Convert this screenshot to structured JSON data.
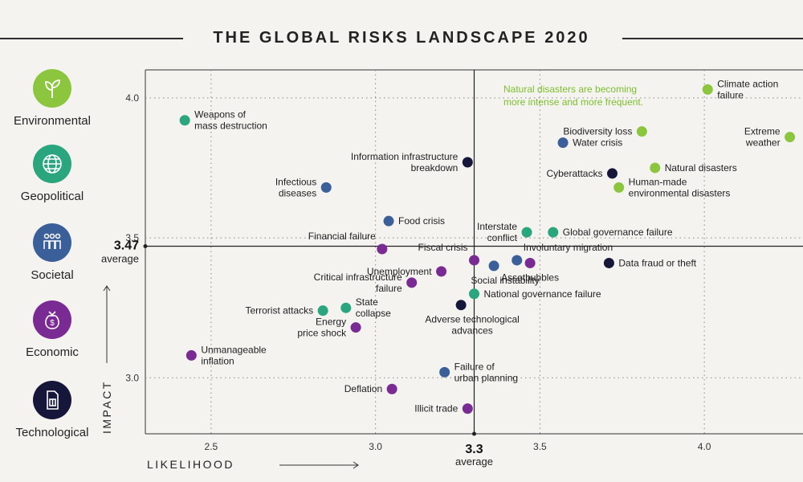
{
  "title": "THE GLOBAL RISKS LANDSCAPE 2020",
  "colors": {
    "Environmental": "#8cc63f",
    "Geopolitical": "#2aa57e",
    "Societal": "#3b5f99",
    "Economic": "#7a2b93",
    "Technological": "#16153a",
    "background": "#f4f3f0"
  },
  "legend": [
    {
      "category": "Environmental",
      "label": "Environmental",
      "icon": "leaf-icon"
    },
    {
      "category": "Geopolitical",
      "label": "Geopolitical",
      "icon": "globe-icon"
    },
    {
      "category": "Societal",
      "label": "Societal",
      "icon": "people-icon"
    },
    {
      "category": "Economic",
      "label": "Economic",
      "icon": "money-bag-icon"
    },
    {
      "category": "Technological",
      "label": "Technological",
      "icon": "sim-card-icon"
    }
  ],
  "annotation": {
    "line1": "Natural disasters are becoming",
    "line2": "more intense and more frequent."
  },
  "chart_data": {
    "type": "scatter",
    "title": "THE GLOBAL RISKS LANDSCAPE 2020",
    "xlabel": "LIKELIHOOD",
    "ylabel": "IMPACT",
    "xlim": [
      2.3,
      4.3
    ],
    "ylim": [
      2.8,
      4.1
    ],
    "xticks": [
      2.5,
      3.0,
      3.5,
      4.0
    ],
    "yticks": [
      3.0,
      3.5,
      4.0
    ],
    "xtick_labels": [
      "2.5",
      "3.0",
      "3.5",
      "4.0"
    ],
    "ytick_labels": [
      "3.0",
      "3.5",
      "4.0"
    ],
    "average_x": 3.3,
    "average_y": 3.47,
    "average_x_label": "3.3",
    "average_y_label": "3.47",
    "average_word": "average",
    "points": [
      {
        "name": "Climate action failure",
        "lines": [
          "Climate action",
          "failure"
        ],
        "category": "Environmental",
        "x": 4.01,
        "y": 4.03,
        "label_pos": "right"
      },
      {
        "name": "Extreme weather",
        "lines": [
          "Extreme",
          "weather"
        ],
        "category": "Environmental",
        "x": 4.26,
        "y": 3.86,
        "label_pos": "left"
      },
      {
        "name": "Biodiversity loss",
        "lines": [
          "Biodiversity loss"
        ],
        "category": "Environmental",
        "x": 3.81,
        "y": 3.88,
        "label_pos": "left"
      },
      {
        "name": "Natural disasters",
        "lines": [
          "Natural disasters"
        ],
        "category": "Environmental",
        "x": 3.85,
        "y": 3.75,
        "label_pos": "right"
      },
      {
        "name": "Human-made environmental disasters",
        "lines": [
          "Human-made",
          "environmental disasters"
        ],
        "category": "Environmental",
        "x": 3.74,
        "y": 3.68,
        "label_pos": "right"
      },
      {
        "name": "Weapons of mass destruction",
        "lines": [
          "Weapons of",
          "mass destruction"
        ],
        "category": "Geopolitical",
        "x": 2.42,
        "y": 3.92,
        "label_pos": "right"
      },
      {
        "name": "Interstate conflict",
        "lines": [
          "Interstate",
          "conflict"
        ],
        "category": "Geopolitical",
        "x": 3.46,
        "y": 3.52,
        "label_pos": "left"
      },
      {
        "name": "Global governance failure",
        "lines": [
          "Global governance failure"
        ],
        "category": "Geopolitical",
        "x": 3.54,
        "y": 3.52,
        "label_pos": "right"
      },
      {
        "name": "National governance failure",
        "lines": [
          "National governance failure"
        ],
        "category": "Geopolitical",
        "x": 3.3,
        "y": 3.3,
        "label_pos": "right"
      },
      {
        "name": "Terrorist attacks",
        "lines": [
          "Terrorist attacks"
        ],
        "category": "Geopolitical",
        "x": 2.84,
        "y": 3.24,
        "label_pos": "left"
      },
      {
        "name": "State collapse",
        "lines": [
          "State",
          "collapse"
        ],
        "category": "Geopolitical",
        "x": 2.91,
        "y": 3.25,
        "label_pos": "right"
      },
      {
        "name": "Water crisis",
        "lines": [
          "Water crisis"
        ],
        "category": "Societal",
        "x": 3.57,
        "y": 3.84,
        "label_pos": "right"
      },
      {
        "name": "Infectious diseases",
        "lines": [
          "Infectious",
          "diseases"
        ],
        "category": "Societal",
        "x": 2.85,
        "y": 3.68,
        "label_pos": "left"
      },
      {
        "name": "Food crisis",
        "lines": [
          "Food crisis"
        ],
        "category": "Societal",
        "x": 3.04,
        "y": 3.56,
        "label_pos": "right"
      },
      {
        "name": "Involuntary migration",
        "lines": [
          "Involuntary migration"
        ],
        "category": "Societal",
        "x": 3.43,
        "y": 3.42,
        "label_pos": "right-up"
      },
      {
        "name": "Social instability",
        "lines": [
          "Social instability"
        ],
        "category": "Societal",
        "x": 3.36,
        "y": 3.4,
        "label_pos": "below"
      },
      {
        "name": "Failure of urban planning",
        "lines": [
          "Failure of",
          "urban planning"
        ],
        "category": "Societal",
        "x": 3.21,
        "y": 3.02,
        "label_pos": "right"
      },
      {
        "name": "Fiscal crisis",
        "lines": [
          "Fiscal crisis"
        ],
        "category": "Economic",
        "x": 3.3,
        "y": 3.42,
        "label_pos": "left-up"
      },
      {
        "name": "Financial failure",
        "lines": [
          "Financial failure"
        ],
        "category": "Economic",
        "x": 3.02,
        "y": 3.46,
        "label_pos": "left-up"
      },
      {
        "name": "Unemployment",
        "lines": [
          "Unemployment"
        ],
        "category": "Economic",
        "x": 3.2,
        "y": 3.38,
        "label_pos": "left"
      },
      {
        "name": "Critical infrastructure failure",
        "lines": [
          "Critical infrastructure",
          "failure"
        ],
        "category": "Economic",
        "x": 3.11,
        "y": 3.34,
        "label_pos": "left"
      },
      {
        "name": "Energy price shock",
        "lines": [
          "Energy",
          "price shock"
        ],
        "category": "Economic",
        "x": 2.94,
        "y": 3.18,
        "label_pos": "left"
      },
      {
        "name": "Unmanageable inflation",
        "lines": [
          "Unmanageable",
          "inflation"
        ],
        "category": "Economic",
        "x": 2.44,
        "y": 3.08,
        "label_pos": "right"
      },
      {
        "name": "Deflation",
        "lines": [
          "Deflation"
        ],
        "category": "Economic",
        "x": 3.05,
        "y": 2.96,
        "label_pos": "left"
      },
      {
        "name": "Illicit trade",
        "lines": [
          "Illicit trade"
        ],
        "category": "Economic",
        "x": 3.28,
        "y": 2.89,
        "label_pos": "left"
      },
      {
        "name": "Asset bubbles",
        "lines": [
          "Assetbubbles"
        ],
        "category": "Economic",
        "x": 3.47,
        "y": 3.41,
        "label_pos": "right-down"
      },
      {
        "name": "Information infrastructure breakdown",
        "lines": [
          "Information infrastructure",
          "breakdown"
        ],
        "category": "Technological",
        "x": 3.28,
        "y": 3.77,
        "label_pos": "left"
      },
      {
        "name": "Cyberattacks",
        "lines": [
          "Cyberattacks"
        ],
        "category": "Technological",
        "x": 3.72,
        "y": 3.73,
        "label_pos": "left"
      },
      {
        "name": "Data fraud or theft",
        "lines": [
          "Data fraud or theft"
        ],
        "category": "Technological",
        "x": 3.71,
        "y": 3.41,
        "label_pos": "right"
      },
      {
        "name": "Adverse technological advances",
        "lines": [
          "Adverse technological",
          "advances"
        ],
        "category": "Technological",
        "x": 3.26,
        "y": 3.26,
        "label_pos": "below"
      }
    ]
  }
}
